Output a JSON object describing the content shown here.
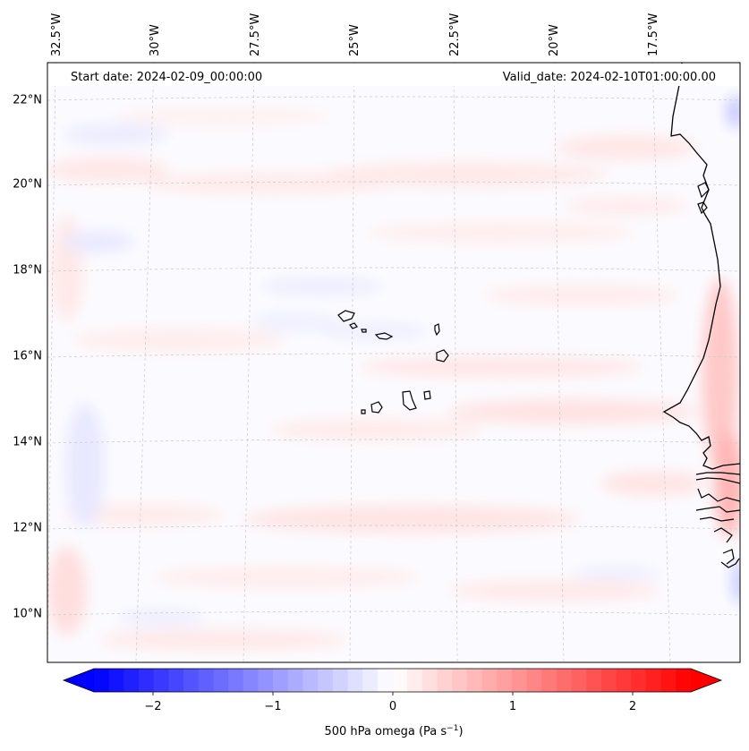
{
  "map": {
    "start_date": "Start date: 2024-02-09_00:00:00",
    "valid_date": "Valid_date: 2024-02-10T01:00:00.00",
    "lon_labels": [
      "32.5°W",
      "30°W",
      "27.5°W",
      "25°W",
      "22.5°W",
      "20°W",
      "17.5°W"
    ],
    "lat_labels": [
      "22°N",
      "20°N",
      "18°N",
      "16°N",
      "14°N",
      "12°N",
      "10°N"
    ]
  },
  "colorbar": {
    "ticks": [
      "−2",
      "−1",
      "0",
      "1",
      "2"
    ],
    "label": "500 hPa omega (Pa s",
    "label_exp": "−1",
    "label_close": ")",
    "colors": {
      "negative": "#0000ff",
      "zero": "#ffffff",
      "positive": "#ff0000"
    }
  }
}
